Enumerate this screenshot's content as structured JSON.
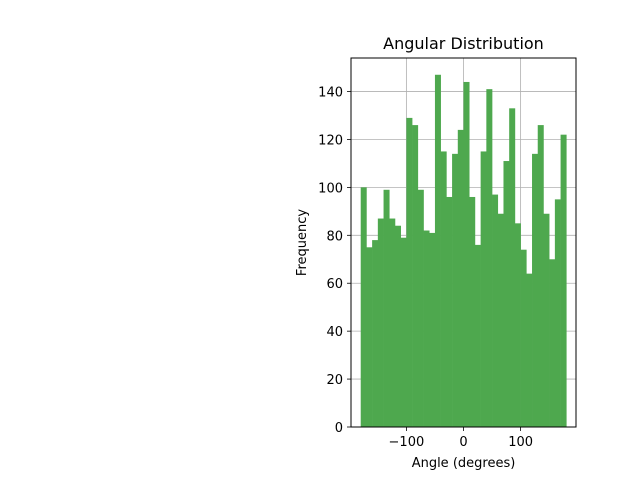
{
  "chart_data": {
    "type": "bar",
    "title": "Angular Distribution",
    "xlabel": "Angle (degrees)",
    "ylabel": "Frequency",
    "xlim": [
      -197,
      197
    ],
    "ylim": [
      0,
      154
    ],
    "x_ticks": [
      {
        "value": -100,
        "label": "−100"
      },
      {
        "value": 0,
        "label": "0"
      },
      {
        "value": 100,
        "label": "100"
      }
    ],
    "y_ticks": [
      {
        "value": 0,
        "label": "0"
      },
      {
        "value": 20,
        "label": "20"
      },
      {
        "value": 40,
        "label": "40"
      },
      {
        "value": 60,
        "label": "60"
      },
      {
        "value": 80,
        "label": "80"
      },
      {
        "value": 100,
        "label": "100"
      },
      {
        "value": 120,
        "label": "120"
      },
      {
        "value": 140,
        "label": "140"
      }
    ],
    "grid": true,
    "bar_color": "#4ea84e",
    "bin_width": 10,
    "bins_start": [
      -180,
      -170,
      -160,
      -150,
      -140,
      -130,
      -120,
      -110,
      -100,
      -90,
      -80,
      -70,
      -60,
      -50,
      -40,
      -30,
      -20,
      -10,
      0,
      10,
      20,
      30,
      40,
      50,
      60,
      70,
      80,
      90,
      100,
      110,
      120,
      130,
      140,
      150,
      160,
      170
    ],
    "values": [
      100,
      75,
      78,
      87,
      99,
      87,
      84,
      79,
      129,
      126,
      99,
      82,
      81,
      147,
      115,
      96,
      114,
      124,
      144,
      96,
      76,
      115,
      141,
      97,
      89,
      111,
      133,
      85,
      74,
      64,
      114,
      126,
      89,
      70,
      95,
      122
    ]
  }
}
